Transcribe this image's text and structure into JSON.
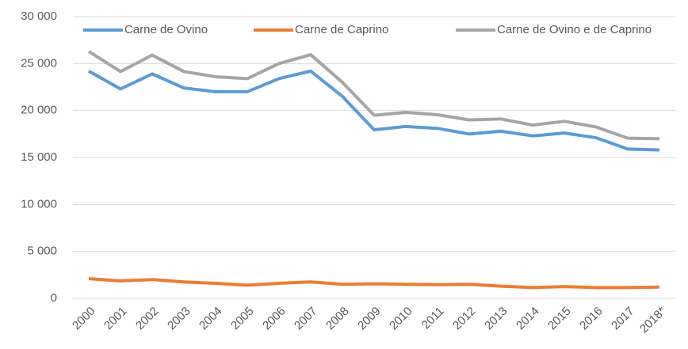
{
  "chart_data": {
    "type": "line",
    "categories": [
      "2000",
      "2001",
      "2002",
      "2003",
      "2004",
      "2005",
      "2006",
      "2007",
      "2008",
      "2009",
      "2010",
      "2011",
      "2012",
      "2013",
      "2014",
      "2015",
      "2016",
      "2017",
      "2018*"
    ],
    "series": [
      {
        "name": "Carne de Ovino",
        "color": "#5b9bd5",
        "values": [
          24200,
          22300,
          23900,
          22400,
          22000,
          22000,
          23400,
          24200,
          21500,
          17950,
          18300,
          18100,
          17500,
          17800,
          17300,
          17600,
          17100,
          15900,
          15800
        ]
      },
      {
        "name": "Carne de Caprino",
        "color": "#ed7d31",
        "values": [
          2100,
          1850,
          2000,
          1750,
          1600,
          1400,
          1600,
          1750,
          1500,
          1550,
          1500,
          1450,
          1500,
          1300,
          1150,
          1250,
          1150,
          1150,
          1200
        ]
      },
      {
        "name": "Carne de Ovino e de Caprino",
        "color": "#a5a5a5",
        "values": [
          26300,
          24150,
          25900,
          24150,
          23600,
          23400,
          25000,
          25950,
          23000,
          19500,
          19800,
          19550,
          19000,
          19100,
          18450,
          18850,
          18250,
          17050,
          17000
        ]
      }
    ],
    "ylim": [
      0,
      30000
    ],
    "yticks": [
      0,
      {
        "value": 5000,
        "label": "5 000"
      },
      {
        "value": 10000,
        "label": "10 000"
      },
      {
        "value": 15000,
        "label": "15 000"
      },
      {
        "value": 20000,
        "label": "20 000"
      },
      {
        "value": 25000,
        "label": "25 000"
      },
      {
        "value": 30000,
        "label": "30 000"
      }
    ],
    "grid": true,
    "legend": "top"
  }
}
